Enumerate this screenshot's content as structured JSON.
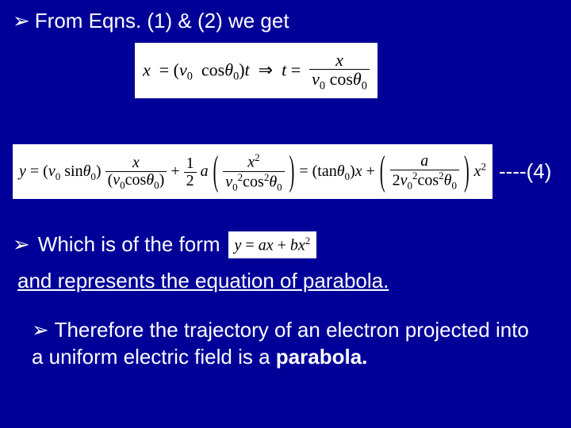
{
  "slide": {
    "background_color": "#000099",
    "text_color": "#ffffff",
    "eq_bg": "#ffffff",
    "eq_text": "#000000",
    "font_body": "Arial",
    "font_math": "Times New Roman",
    "fontsize_body": 26,
    "fontsize_math": 22
  },
  "line1": {
    "bullet": "➢",
    "text": "From Eqns. (1) & (2) we get"
  },
  "eq1": {
    "lhs_x": "x",
    "eq": "=",
    "v0": "ν",
    "v0_sub": "0",
    "cos": "cos",
    "theta": "θ",
    "theta_sub": "0",
    "t": "t",
    "implies": "⇒",
    "frac_num": "x",
    "frac_den_left": "ν",
    "frac_den_right": "cosθ"
  },
  "eq2": {
    "y": "y",
    "v0": "ν",
    "sin": "sin",
    "cos": "cos",
    "theta": "θ",
    "half_num": "1",
    "half_den": "2",
    "a": "a",
    "x": "x",
    "x2": "x",
    "tan": "tan",
    "two": "2"
  },
  "tag4": "----(4)",
  "line3": {
    "bullet": "➢",
    "text": "Which is of the form"
  },
  "eq3": {
    "y": "y",
    "a": "a",
    "x": "x",
    "plus": "+",
    "b": "b",
    "sq": "2"
  },
  "line4": {
    "text": "and represents the equation of parabola."
  },
  "line5": {
    "bullet": "➢",
    "text_a": "Therefore the trajectory of an electron projected into a uniform electric field is a ",
    "bold": "parabola."
  }
}
